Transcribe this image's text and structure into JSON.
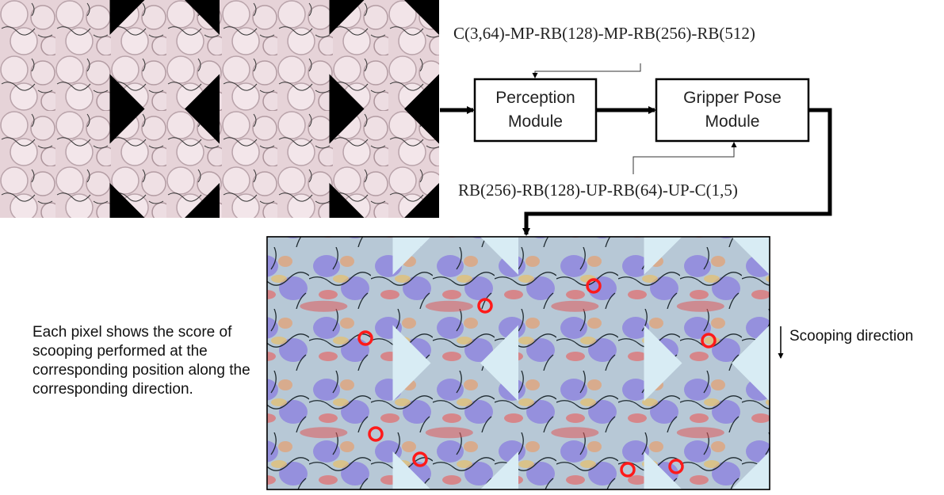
{
  "encoder_arch": "C(3,64)-MP-RB(128)-MP-RB(256)-RB(512)",
  "decoder_arch": "RB(256)-RB(128)-UP-RB(64)-UP-C(1,5)",
  "perception_module": {
    "line1": "Perception",
    "line2": "Module"
  },
  "gripper_pose_module": {
    "line1": "Gripper Pose",
    "line2": "Module"
  },
  "caption": "Each pixel shows the score of scooping performed at the corresponding position along the corresponding direction.",
  "direction_label": "Scooping direction",
  "colors": {
    "heat_high": "#e05a5a",
    "heat_mid": "#e8c06a",
    "heat_low": "#7a6fd8",
    "marker": "#ff1a1a",
    "tile_bg": "#e9d6db"
  }
}
